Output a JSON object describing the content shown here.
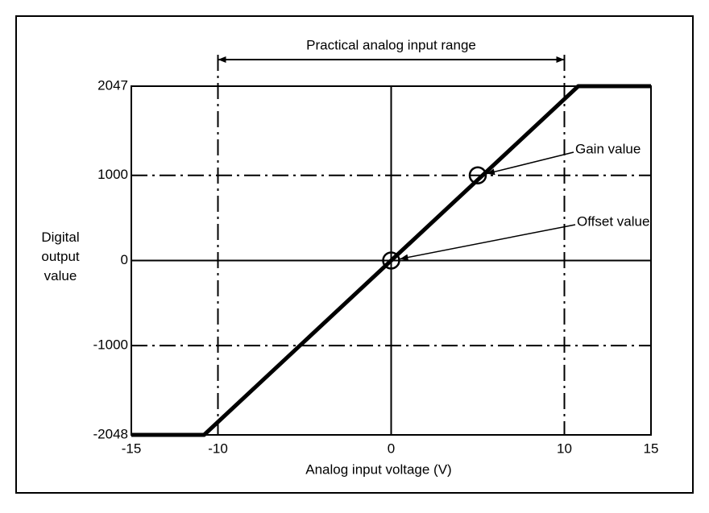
{
  "chart_data": {
    "type": "line",
    "xlabel": "Analog input voltage (V)",
    "ylabel": "Digital output value",
    "x": [
      -15,
      -10.8,
      10.8,
      15
    ],
    "series": [
      {
        "color": "#000000",
        "values": [
          -2048,
          -2048,
          2047,
          2047
        ]
      }
    ],
    "xlim": [
      -15,
      15
    ],
    "ylim": [
      -2048,
      2047
    ],
    "xticks": [
      -15,
      -10,
      0,
      10,
      15
    ],
    "yticks": [
      -2048,
      -1000,
      0,
      1000,
      2047
    ],
    "range": {
      "label": "Practical analog input range",
      "from": -10,
      "to": 10
    },
    "annotations": [
      {
        "text": "Gain value",
        "x": 5,
        "y": 1000
      },
      {
        "text": "Offset value",
        "x": 0,
        "y": 0
      }
    ]
  }
}
